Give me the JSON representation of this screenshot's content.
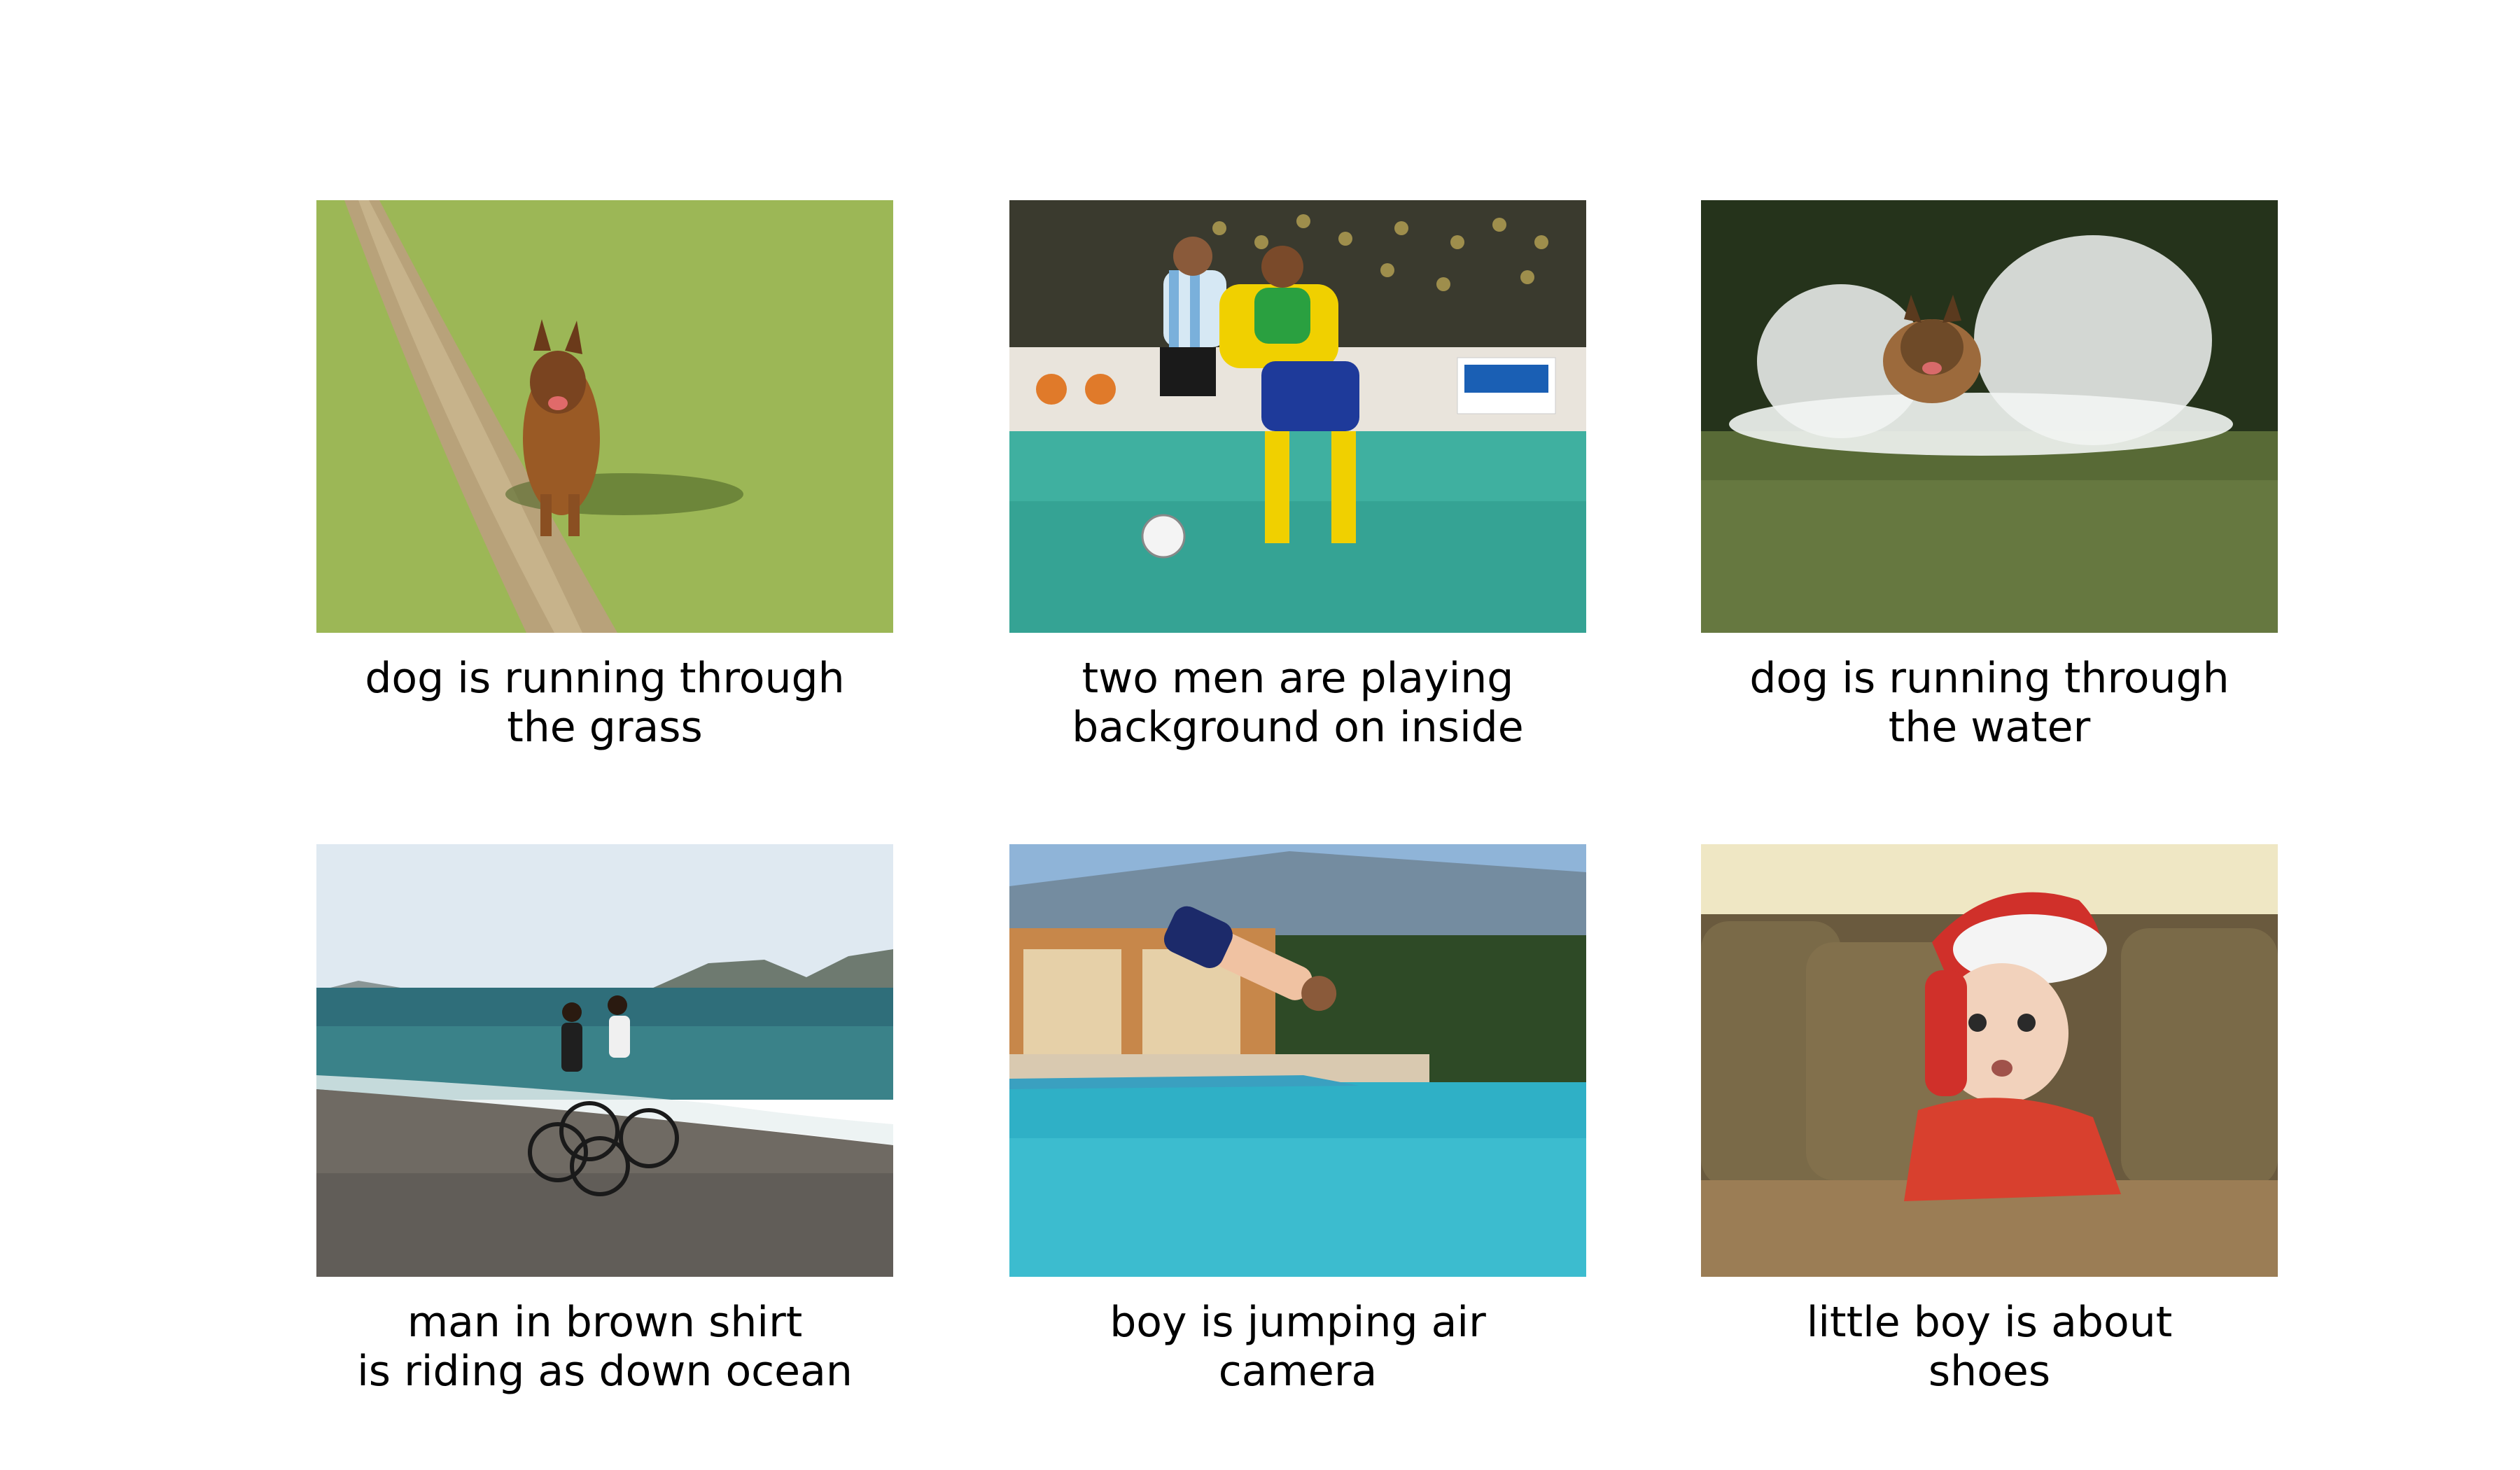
{
  "panels": [
    {
      "image": "dog-in-grass-photo",
      "caption": [
        "dog is running through",
        "the grass"
      ]
    },
    {
      "image": "soccer-players-photo",
      "caption": [
        "two men are playing",
        "background on inside"
      ]
    },
    {
      "image": "dog-in-water-photo",
      "caption": [
        "dog is running through",
        "the water"
      ]
    },
    {
      "image": "cyclists-by-ocean-photo",
      "caption": [
        "man in brown shirt",
        "is riding as down ocean"
      ]
    },
    {
      "image": "boy-diving-pool-photo",
      "caption": [
        "boy is jumping air",
        "camera"
      ]
    },
    {
      "image": "baby-santa-hat-photo",
      "caption": [
        "little boy is about",
        "shoes"
      ]
    }
  ]
}
